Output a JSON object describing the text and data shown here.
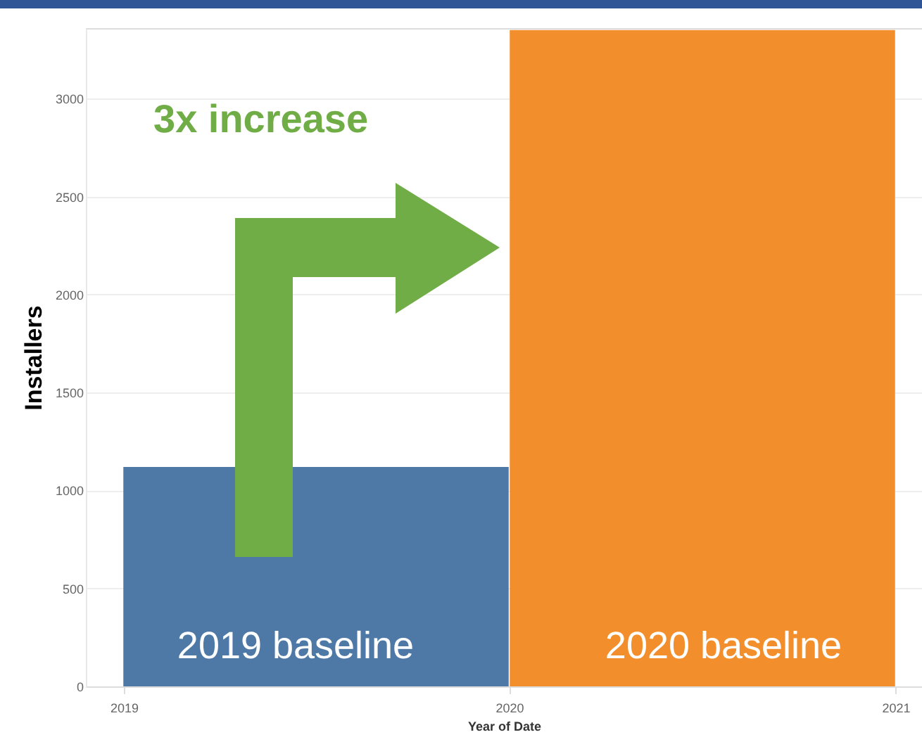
{
  "chart_data": {
    "type": "bar",
    "x": [
      "2019-07-02",
      "2020-07-02"
    ],
    "values": [
      1120,
      3350
    ],
    "colors": [
      "#4e79a7",
      "#f28e2b"
    ],
    "xlim": [
      "2018-11-26",
      "2021-01-26"
    ],
    "xticks": [
      "2019",
      "2020",
      "2021"
    ],
    "ylim": [
      0,
      3360
    ],
    "yticks": [
      0,
      500,
      1000,
      1500,
      2000,
      2500,
      3000
    ],
    "xlabel": "Year of Date",
    "ylabel": "Installers",
    "grid": "y",
    "legend": false,
    "annotations": [
      "3x increase",
      "2019 baseline",
      "2020 baseline"
    ]
  }
}
